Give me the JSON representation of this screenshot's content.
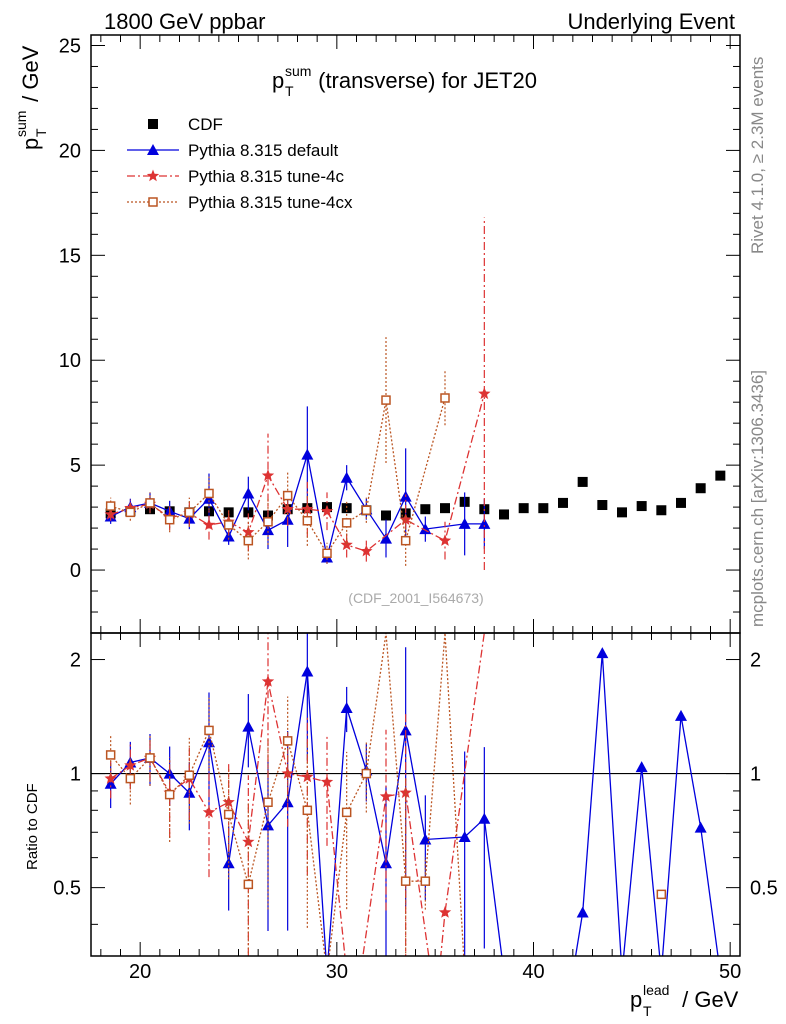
{
  "header": {
    "left": "1800 GeV ppbar",
    "right": "Underlying Event"
  },
  "side_text": {
    "rivet": "Rivet 4.1.0, ≥ 2.3M events",
    "mcplots": "mcplots.cern.ch [arXiv:1306.3436]"
  },
  "chart_data": {
    "type": "scatter",
    "title": {
      "base": "p",
      "sup": "sum",
      "sub": "T",
      "rest": " (transverse) for JET20"
    },
    "analysis_tag": "(CDF_2001_I564673)",
    "xlabel": {
      "base": "p",
      "sup": "lead",
      "sub": "T",
      "unit": " / GeV"
    },
    "ylabel": {
      "base": "p",
      "sup": "sum",
      "sub": "T",
      "unit": " / GeV"
    },
    "ratio_ylabel": "Ratio to CDF",
    "xlim": [
      17.5,
      50.5
    ],
    "ylim": [
      -3,
      25.5
    ],
    "ratio_ylim": [
      0.33,
      2.35
    ],
    "x_ticks": [
      "20",
      "30",
      "40",
      "50"
    ],
    "y_ticks": [
      "0",
      "5",
      "10",
      "15",
      "20",
      "25"
    ],
    "ratio_ticks": [
      "0.5",
      "1",
      "2"
    ],
    "legend_position": "top-left",
    "series": [
      {
        "name": "CDF",
        "color": "#000000",
        "marker": "square",
        "line": "none",
        "x": [
          18.5,
          19.5,
          20.5,
          21.5,
          22.5,
          23.5,
          24.5,
          25.5,
          26.5,
          27.5,
          28.5,
          29.5,
          30.5,
          31.5,
          32.5,
          33.5,
          34.5,
          35.5,
          36.5,
          37.5,
          38.5,
          39.5,
          40.5,
          41.5,
          42.5,
          43.5,
          44.5,
          45.5,
          46.5,
          47.5,
          48.5,
          49.5
        ],
        "y": [
          2.7,
          2.8,
          2.9,
          2.8,
          2.75,
          2.8,
          2.75,
          2.75,
          2.6,
          2.9,
          2.95,
          3.0,
          2.95,
          2.85,
          2.6,
          2.7,
          2.9,
          2.95,
          3.25,
          2.9,
          2.65,
          2.95,
          2.95,
          3.2,
          4.2,
          3.1,
          2.75,
          3.05,
          2.85,
          3.2,
          3.9,
          4.5
        ]
      },
      {
        "name": "Pythia 8.315 default",
        "color": "#0000dd",
        "marker": "triangle",
        "line": "solid",
        "x": [
          18.5,
          19.5,
          20.5,
          21.5,
          22.5,
          23.5,
          24.5,
          25.5,
          26.5,
          27.5,
          28.5,
          29.5,
          30.5,
          31.5,
          32.5,
          33.5,
          34.5,
          36.5,
          37.5
        ],
        "y": [
          2.55,
          3.0,
          3.2,
          2.8,
          2.45,
          3.4,
          1.6,
          3.65,
          1.9,
          2.4,
          5.5,
          0.6,
          4.4,
          2.9,
          1.5,
          3.5,
          1.95,
          2.2,
          2.2
        ],
        "err": [
          0.35,
          0.4,
          0.5,
          0.5,
          0.5,
          1.2,
          0.4,
          0.8,
          0.9,
          1.3,
          2.3,
          0.3,
          0.6,
          0.5,
          0.9,
          2.3,
          0.6,
          1.5,
          1.2
        ],
        "ratio": [
          0.94,
          1.07,
          1.1,
          1.0,
          0.89,
          1.21,
          0.58,
          1.33,
          0.73,
          0.84,
          1.86,
          0.2,
          1.49,
          1.02,
          0.58,
          1.3,
          0.67,
          0.68,
          0.76,
          0.0,
          0.0,
          0.0,
          0.0,
          0.0,
          0.43,
          2.08,
          0.0,
          1.04,
          0.0,
          1.42,
          0.72,
          0.0
        ],
        "ratio_x": [
          18.5,
          19.5,
          20.5,
          21.5,
          22.5,
          23.5,
          24.5,
          25.5,
          26.5,
          27.5,
          28.5,
          29.5,
          30.5,
          31.5,
          32.5,
          33.5,
          34.5,
          36.5,
          37.5,
          38.5,
          39.5,
          40.5,
          41.5,
          42.0,
          42.5,
          43.5,
          44.5,
          45.5,
          46.5,
          47.5,
          48.5,
          49.5
        ]
      },
      {
        "name": "Pythia 8.315 tune-4c",
        "color": "#dd3333",
        "marker": "star",
        "line": "dashdot",
        "x": [
          18.5,
          19.5,
          20.5,
          21.5,
          22.5,
          23.5,
          24.5,
          25.5,
          26.5,
          27.5,
          28.5,
          29.5,
          30.5,
          31.5,
          33.5,
          35.5,
          37.5
        ],
        "y": [
          2.65,
          2.95,
          3.15,
          2.5,
          2.7,
          2.15,
          2.3,
          1.8,
          4.5,
          2.9,
          2.9,
          2.8,
          1.2,
          0.9,
          2.4,
          1.4,
          8.4
        ],
        "err": [
          0.3,
          0.4,
          0.4,
          0.6,
          0.6,
          0.7,
          0.6,
          0.9,
          2.0,
          0.8,
          1.3,
          0.9,
          0.6,
          0.5,
          1.2,
          0.9,
          8.4
        ],
        "ratio": [
          0.97,
          1.05,
          1.1,
          0.89,
          0.97,
          0.79,
          0.84,
          0.66,
          1.75,
          1.0,
          0.98,
          0.95,
          0.2,
          0.0,
          0.87,
          0.89,
          0.0,
          0.0,
          0.43,
          2.35
        ],
        "ratio_x": [
          18.5,
          19.5,
          20.5,
          21.5,
          22.5,
          23.5,
          24.5,
          25.5,
          26.5,
          27.5,
          28.5,
          29.5,
          30.5,
          31.2,
          32.5,
          33.5,
          34.8,
          35.2,
          35.5,
          37.5
        ]
      },
      {
        "name": "Pythia 8.315 tune-4cx",
        "color": "#bb5522",
        "marker": "open-square",
        "line": "dotted",
        "x": [
          18.5,
          19.5,
          20.5,
          21.5,
          22.5,
          23.5,
          24.5,
          25.5,
          26.5,
          27.5,
          28.5,
          29.5,
          30.5,
          31.5,
          32.5,
          33.5,
          35.5
        ],
        "y": [
          3.05,
          2.75,
          3.2,
          2.4,
          2.75,
          3.65,
          2.15,
          1.4,
          2.3,
          3.55,
          2.35,
          0.8,
          2.25,
          2.85,
          8.1,
          1.4,
          8.2
        ],
        "err": [
          0.4,
          0.4,
          0.5,
          0.6,
          0.7,
          0.8,
          0.7,
          0.9,
          1.1,
          1.1,
          1.2,
          0.5,
          1.0,
          0.6,
          3.0,
          1.2,
          1.3
        ],
        "ratio": [
          1.12,
          0.97,
          1.1,
          0.88,
          0.99,
          1.3,
          0.78,
          0.51,
          0.84,
          1.22,
          0.8,
          0.27,
          0.79,
          1.0,
          2.35,
          0.52,
          0.52,
          2.35,
          0.0
        ],
        "ratio_x": [
          18.5,
          19.5,
          20.5,
          21.5,
          22.5,
          23.5,
          24.5,
          25.5,
          26.5,
          27.5,
          28.5,
          29.5,
          30.5,
          31.5,
          32.5,
          33.5,
          34.5,
          35.5,
          36.5
        ]
      }
    ],
    "ratio_extra": {
      "x": 46.5,
      "y": 0.48,
      "series": "Pythia 8.315 tune-4cx"
    }
  }
}
